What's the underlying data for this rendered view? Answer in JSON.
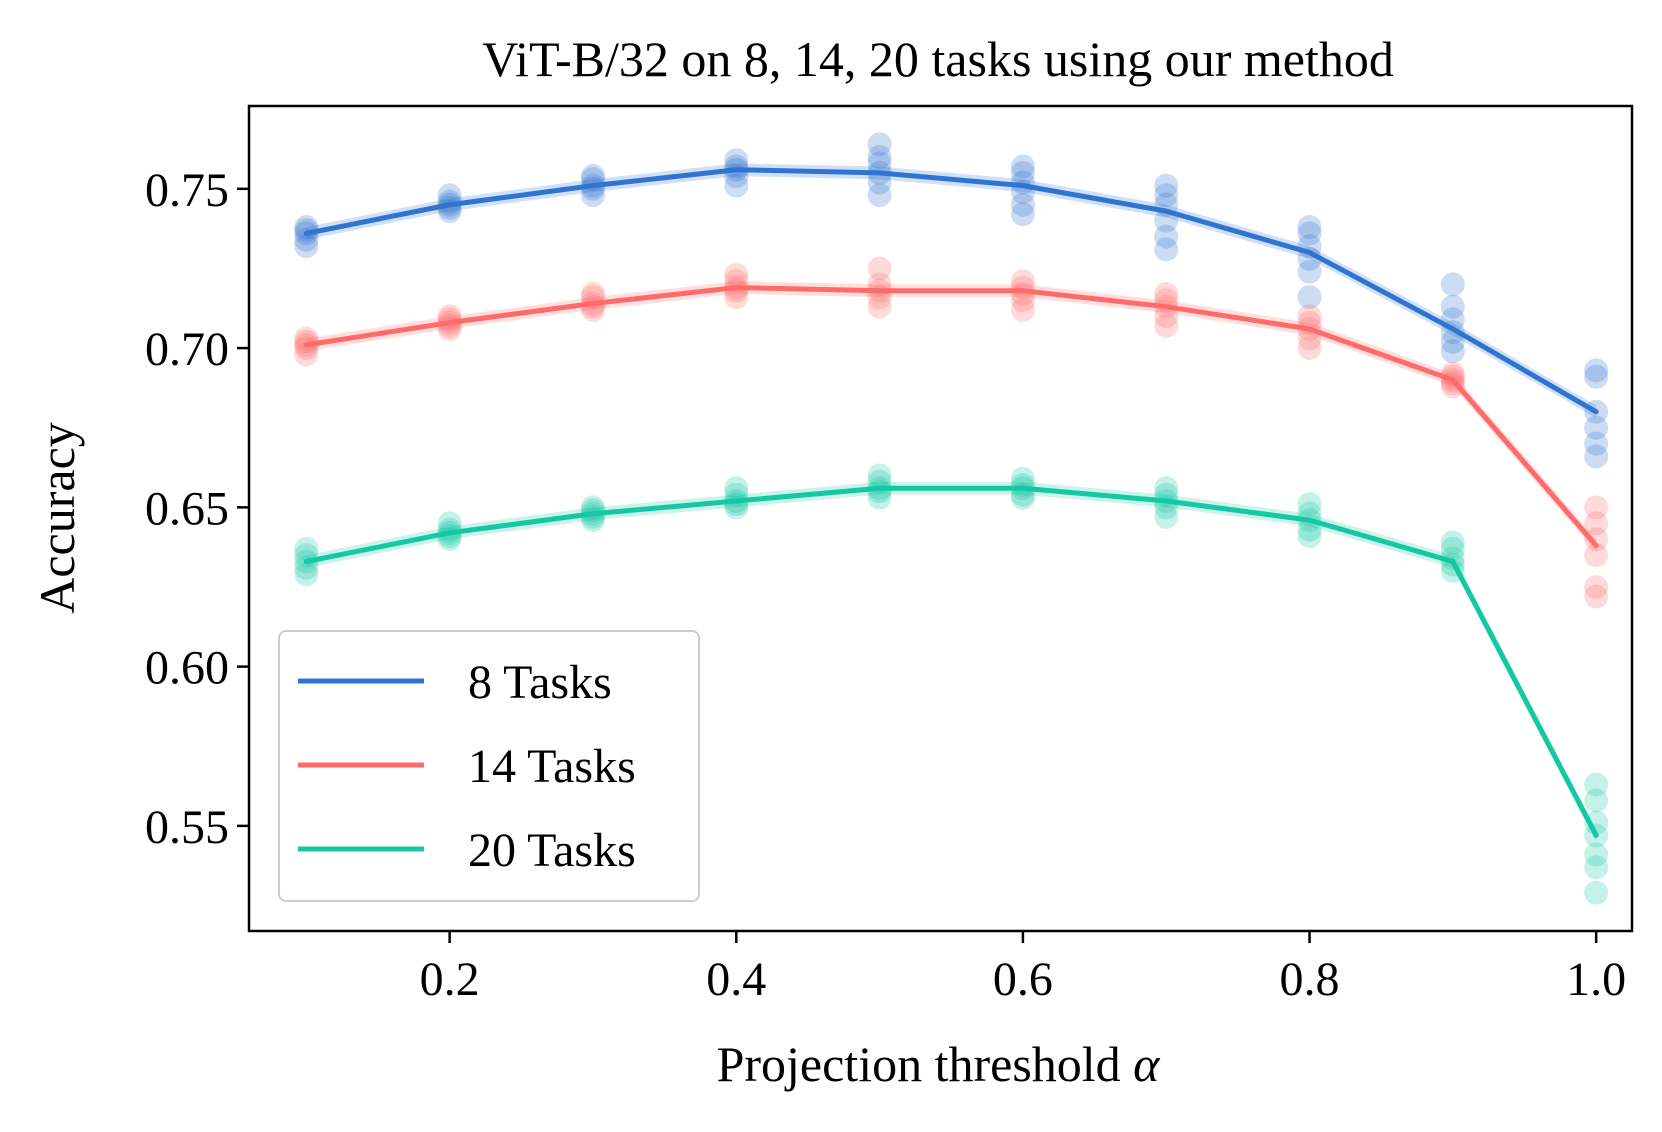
{
  "chart_data": {
    "type": "line",
    "title": "ViT-B/32 on 8, 14, 20 tasks using our method",
    "xlabel": "Projection threshold",
    "xlabel_symbol": "α",
    "ylabel": "Accuracy",
    "xlim": [
      0.06,
      1.025
    ],
    "ylim": [
      0.517,
      0.776
    ],
    "xticks": [
      0.2,
      0.4,
      0.6,
      0.8,
      1.0
    ],
    "xtick_labels": [
      "0.2",
      "0.4",
      "0.6",
      "0.8",
      "1.0"
    ],
    "yticks": [
      0.55,
      0.6,
      0.65,
      0.7,
      0.75
    ],
    "ytick_labels": [
      "0.55",
      "0.60",
      "0.65",
      "0.70",
      "0.75"
    ],
    "x": [
      0.1,
      0.2,
      0.3,
      0.4,
      0.5,
      0.6,
      0.7,
      0.8,
      0.9,
      1.0
    ],
    "legend_position": "lower-left",
    "series": [
      {
        "name": "8 Tasks",
        "color": "#2f74d0",
        "values": [
          0.736,
          0.745,
          0.751,
          0.756,
          0.755,
          0.751,
          0.743,
          0.73,
          0.706,
          0.68
        ],
        "band": 0.002,
        "scatter": [
          [
            0.732,
            0.734,
            0.736,
            0.737,
            0.738
          ],
          [
            0.743,
            0.744,
            0.745,
            0.746,
            0.748
          ],
          [
            0.748,
            0.75,
            0.751,
            0.753,
            0.754
          ],
          [
            0.751,
            0.754,
            0.756,
            0.757,
            0.759
          ],
          [
            0.748,
            0.752,
            0.755,
            0.758,
            0.76,
            0.764
          ],
          [
            0.742,
            0.745,
            0.749,
            0.752,
            0.755,
            0.757
          ],
          [
            0.731,
            0.735,
            0.74,
            0.745,
            0.748,
            0.751
          ],
          [
            0.716,
            0.724,
            0.728,
            0.732,
            0.736,
            0.738
          ],
          [
            0.699,
            0.702,
            0.705,
            0.709,
            0.713,
            0.72
          ],
          [
            0.666,
            0.67,
            0.675,
            0.68,
            0.691,
            0.693
          ]
        ]
      },
      {
        "name": "14 Tasks",
        "color": "#ff6b6b",
        "values": [
          0.701,
          0.708,
          0.714,
          0.719,
          0.718,
          0.718,
          0.713,
          0.706,
          0.69,
          0.638
        ],
        "band": 0.002,
        "scatter": [
          [
            0.698,
            0.7,
            0.701,
            0.702,
            0.703
          ],
          [
            0.706,
            0.707,
            0.708,
            0.709,
            0.71
          ],
          [
            0.712,
            0.713,
            0.714,
            0.716,
            0.717
          ],
          [
            0.716,
            0.718,
            0.719,
            0.721,
            0.723
          ],
          [
            0.713,
            0.716,
            0.718,
            0.72,
            0.725
          ],
          [
            0.712,
            0.715,
            0.717,
            0.719,
            0.721
          ],
          [
            0.707,
            0.71,
            0.713,
            0.715,
            0.717
          ],
          [
            0.7,
            0.703,
            0.706,
            0.708,
            0.71
          ],
          [
            0.688,
            0.689,
            0.69,
            0.691,
            0.692
          ],
          [
            0.622,
            0.625,
            0.635,
            0.64,
            0.645,
            0.65
          ]
        ]
      },
      {
        "name": "20 Tasks",
        "color": "#14c8a4",
        "values": [
          0.633,
          0.642,
          0.648,
          0.652,
          0.656,
          0.656,
          0.652,
          0.646,
          0.633,
          0.547
        ],
        "band": 0.002,
        "scatter": [
          [
            0.629,
            0.631,
            0.633,
            0.635,
            0.637
          ],
          [
            0.64,
            0.641,
            0.642,
            0.643,
            0.645
          ],
          [
            0.646,
            0.647,
            0.648,
            0.649,
            0.65
          ],
          [
            0.65,
            0.651,
            0.652,
            0.654,
            0.656
          ],
          [
            0.653,
            0.655,
            0.656,
            0.658,
            0.66
          ],
          [
            0.653,
            0.654,
            0.656,
            0.657,
            0.659
          ],
          [
            0.647,
            0.65,
            0.652,
            0.654,
            0.656
          ],
          [
            0.641,
            0.643,
            0.646,
            0.648,
            0.651
          ],
          [
            0.63,
            0.632,
            0.634,
            0.637,
            0.639
          ],
          [
            0.529,
            0.537,
            0.541,
            0.547,
            0.551,
            0.558,
            0.563
          ]
        ]
      }
    ]
  }
}
